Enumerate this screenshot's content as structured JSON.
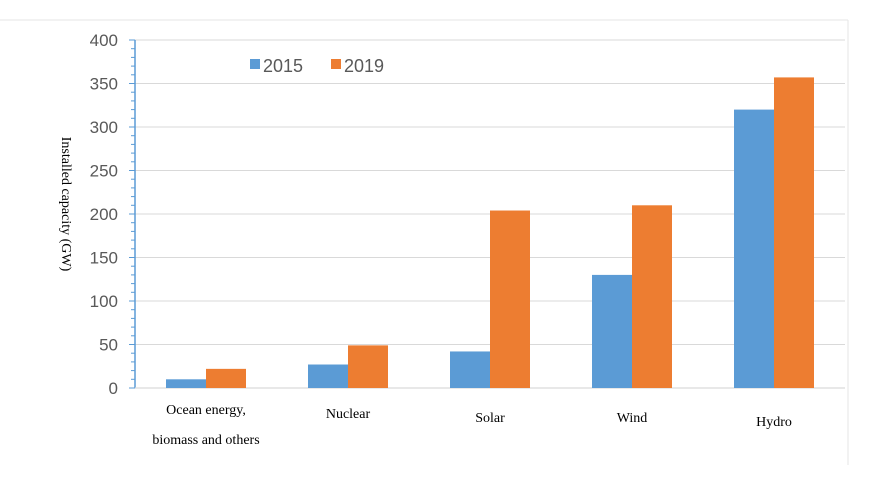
{
  "chart_data": {
    "type": "bar",
    "title": "",
    "xlabel": "",
    "ylabel": "Installed capacity (GW)",
    "ylim": [
      0,
      400
    ],
    "yticks": [
      0,
      50,
      100,
      150,
      200,
      250,
      300,
      350,
      400
    ],
    "grid": true,
    "legend_position": "top-left",
    "categories": [
      [
        "Ocean energy,",
        "biomass and others"
      ],
      [
        "Nuclear"
      ],
      [
        "Solar"
      ],
      [
        "Wind"
      ],
      [
        "Hydro"
      ]
    ],
    "series": [
      {
        "name": "2015",
        "color": "#5B9BD5",
        "values": [
          10,
          27,
          42,
          130,
          320
        ]
      },
      {
        "name": "2019",
        "color": "#ED7D31",
        "values": [
          22,
          49,
          204,
          210,
          357
        ]
      }
    ]
  }
}
